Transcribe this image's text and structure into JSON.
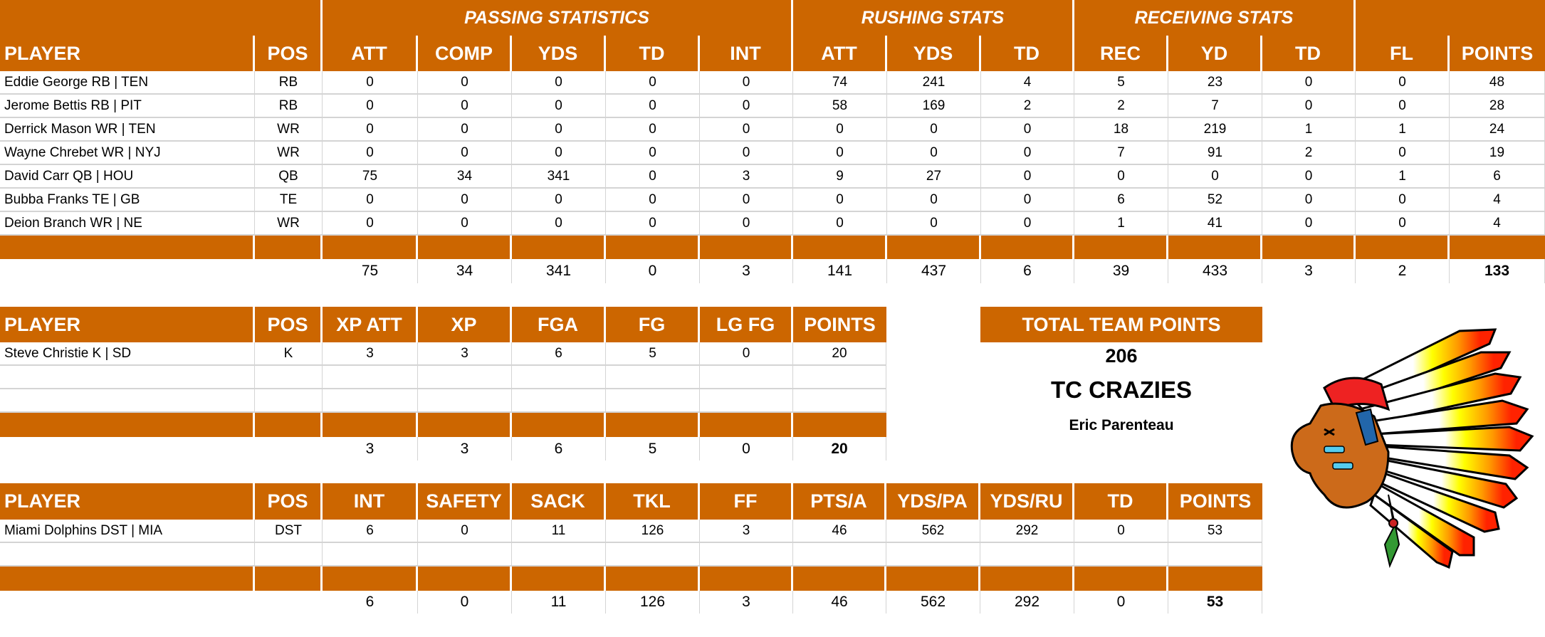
{
  "colors": {
    "accent": "#cc6600",
    "header_text": "#ffffff",
    "grid": "#d4d4d4"
  },
  "offense": {
    "group_headers": {
      "passing": "PASSING STATISTICS",
      "rushing": "RUSHING STATS",
      "receiving": "RECEIVING STATS"
    },
    "columns": [
      "PLAYER",
      "POS",
      "ATT",
      "COMP",
      "YDS",
      "TD",
      "INT",
      "ATT",
      "YDS",
      "TD",
      "REC",
      "YD",
      "TD",
      "FL",
      "POINTS"
    ],
    "rows": [
      [
        "Eddie George RB | TEN",
        "RB",
        "0",
        "0",
        "0",
        "0",
        "0",
        "74",
        "241",
        "4",
        "5",
        "23",
        "0",
        "0",
        "48"
      ],
      [
        "Jerome Bettis RB | PIT",
        "RB",
        "0",
        "0",
        "0",
        "0",
        "0",
        "58",
        "169",
        "2",
        "2",
        "7",
        "0",
        "0",
        "28"
      ],
      [
        "Derrick Mason WR | TEN",
        "WR",
        "0",
        "0",
        "0",
        "0",
        "0",
        "0",
        "0",
        "0",
        "18",
        "219",
        "1",
        "1",
        "24"
      ],
      [
        "Wayne Chrebet WR | NYJ",
        "WR",
        "0",
        "0",
        "0",
        "0",
        "0",
        "0",
        "0",
        "0",
        "7",
        "91",
        "2",
        "0",
        "19"
      ],
      [
        "David Carr QB | HOU",
        "QB",
        "75",
        "34",
        "341",
        "0",
        "3",
        "9",
        "27",
        "0",
        "0",
        "0",
        "0",
        "1",
        "6"
      ],
      [
        "Bubba Franks TE | GB",
        "TE",
        "0",
        "0",
        "0",
        "0",
        "0",
        "0",
        "0",
        "0",
        "6",
        "52",
        "0",
        "0",
        "4"
      ],
      [
        "Deion Branch WR | NE",
        "WR",
        "0",
        "0",
        "0",
        "0",
        "0",
        "0",
        "0",
        "0",
        "1",
        "41",
        "0",
        "0",
        "4"
      ]
    ],
    "totals": [
      "",
      "",
      "75",
      "34",
      "341",
      "0",
      "3",
      "141",
      "437",
      "6",
      "39",
      "433",
      "3",
      "2",
      "133"
    ]
  },
  "kicker": {
    "columns": [
      "PLAYER",
      "POS",
      "XP ATT",
      "XP",
      "FGA",
      "FG",
      "LG FG",
      "POINTS"
    ],
    "rows": [
      [
        "Steve Christie K | SD",
        "K",
        "3",
        "3",
        "6",
        "5",
        "0",
        "20"
      ],
      [
        "",
        "",
        "",
        "",
        "",
        "",
        "",
        ""
      ],
      [
        "",
        "",
        "",
        "",
        "",
        "",
        "",
        ""
      ]
    ],
    "totals": [
      "",
      "",
      "3",
      "3",
      "6",
      "5",
      "0",
      "20"
    ]
  },
  "defense": {
    "columns": [
      "PLAYER",
      "POS",
      "INT",
      "SAFETY",
      "SACK",
      "TKL",
      "FF",
      "PTS/A",
      "YDS/PA",
      "YDS/RU",
      "TD",
      "POINTS"
    ],
    "rows": [
      [
        "Miami Dolphins DST | MIA",
        "DST",
        "6",
        "0",
        "11",
        "126",
        "3",
        "46",
        "562",
        "292",
        "0",
        "53"
      ],
      [
        "",
        "",
        "",
        "",
        "",
        "",
        "",
        "",
        "",
        "",
        "",
        ""
      ]
    ],
    "totals": [
      "",
      "",
      "6",
      "0",
      "11",
      "126",
      "3",
      "46",
      "562",
      "292",
      "0",
      "53"
    ]
  },
  "team": {
    "header": "TOTAL TEAM POINTS",
    "total_points": "206",
    "name": "TC CRAZIES",
    "owner": "Eric Parenteau",
    "logo_icon": "chief-headdress-logo-icon"
  }
}
